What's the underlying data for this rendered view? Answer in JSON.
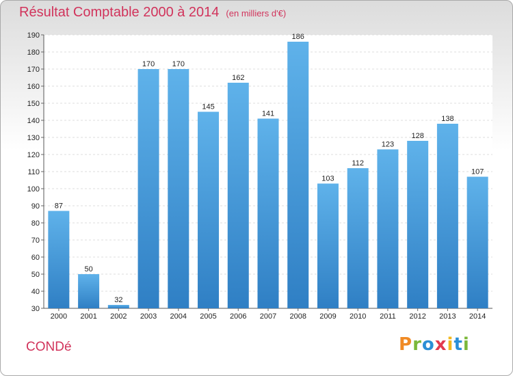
{
  "header": {
    "title": "Résultat Comptable 2000 à 2014",
    "subtitle": "(en milliers d'€)"
  },
  "footer": {
    "commune": "CONDé",
    "logo": "Proxiti"
  },
  "colors": {
    "title": "#d1335b",
    "bar_top": "#5fb2ea",
    "bar_bottom": "#2f7fc4",
    "logo_letters": [
      "#f08a24",
      "#7bb83a",
      "#2b8fd6",
      "#e23a4f",
      "#f2b81e",
      "#2b8fd6",
      "#7bb83a"
    ]
  },
  "chart_data": {
    "type": "bar",
    "categories": [
      "2000",
      "2001",
      "2002",
      "2003",
      "2004",
      "2005",
      "2006",
      "2007",
      "2008",
      "2009",
      "2010",
      "2011",
      "2012",
      "2013",
      "2014"
    ],
    "values": [
      87,
      50,
      32,
      170,
      170,
      145,
      162,
      141,
      186,
      103,
      112,
      123,
      128,
      138,
      107
    ],
    "yticks": [
      30,
      40,
      50,
      60,
      70,
      80,
      90,
      100,
      110,
      120,
      130,
      140,
      150,
      160,
      170,
      180,
      190
    ],
    "ylim": [
      30,
      190
    ],
    "grid": true,
    "title": "Résultat Comptable 2000 à 2014",
    "xlabel": "",
    "ylabel": ""
  }
}
